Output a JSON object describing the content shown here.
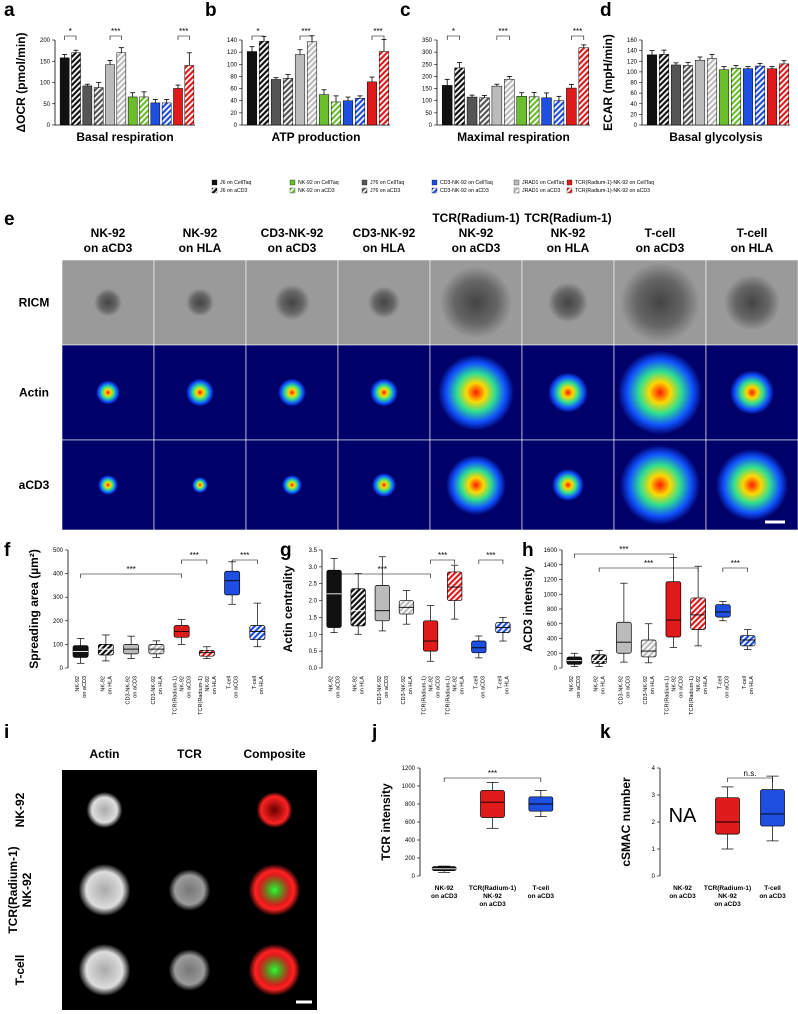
{
  "legend": [
    {
      "name": "J6 on CellTaq",
      "color": "#111111",
      "hatched": false
    },
    {
      "name": "J6 on aCD3",
      "color": "#111111",
      "hatched": true
    },
    {
      "name": "J76 on CellTaq",
      "color": "#555555",
      "hatched": false
    },
    {
      "name": "J76 on aCD3",
      "color": "#555555",
      "hatched": true
    },
    {
      "name": "JRAD1 on CellTaq",
      "color": "#bbbbbb",
      "hatched": false
    },
    {
      "name": "JRAD1 on aCD3",
      "color": "#bbbbbb",
      "hatched": true
    },
    {
      "name": "NK-92 on CellTaq",
      "color": "#6abf2a",
      "hatched": false
    },
    {
      "name": "NK-92 on aCD3",
      "color": "#6abf2a",
      "hatched": true
    },
    {
      "name": "CD3-NK-92 on CellTaq",
      "color": "#1f4fe0",
      "hatched": false
    },
    {
      "name": "CD3-NK-92 on aCD3",
      "color": "#1f4fe0",
      "hatched": true
    },
    {
      "name": "TCR(Radium-1)-NK-92 on CellTaq",
      "color": "#e01b1b",
      "hatched": false
    },
    {
      "name": "TCR(Radium-1)-NK-92 on aCD3",
      "color": "#e01b1b",
      "hatched": true
    }
  ],
  "chart_data": [
    {
      "type": "bar",
      "panel": "a",
      "ylabel": "ΔOCR (pmol/min)",
      "xlabel": "Basal respiration",
      "ylim": [
        0,
        200
      ],
      "yticks": [
        0,
        50,
        100,
        150,
        200
      ],
      "values": [
        158,
        170,
        92,
        88,
        142,
        170,
        66,
        66,
        52,
        52,
        86,
        140
      ],
      "errors": [
        8,
        6,
        4,
        12,
        10,
        12,
        10,
        12,
        8,
        8,
        8,
        30
      ],
      "annotations": [
        "*",
        "***",
        "***"
      ]
    },
    {
      "type": "bar",
      "panel": "b",
      "xlabel": "ATP production",
      "ylim": [
        0,
        140
      ],
      "yticks": [
        0,
        20,
        40,
        60,
        80,
        100,
        120,
        140
      ],
      "values": [
        121,
        138,
        75,
        77,
        116,
        137,
        50,
        38,
        40,
        44,
        71,
        121
      ],
      "errors": [
        8,
        8,
        3,
        6,
        8,
        10,
        8,
        10,
        6,
        4,
        8,
        20
      ],
      "annotations": [
        "*",
        "***",
        "***"
      ]
    },
    {
      "type": "bar",
      "panel": "c",
      "xlabel": "Maximal respiration",
      "ylim": [
        0,
        350
      ],
      "yticks": [
        0,
        50,
        100,
        150,
        200,
        250,
        300,
        350
      ],
      "values": [
        163,
        235,
        115,
        112,
        160,
        188,
        118,
        116,
        112,
        100,
        152,
        318
      ],
      "errors": [
        25,
        22,
        8,
        10,
        8,
        12,
        15,
        18,
        20,
        18,
        15,
        12
      ],
      "annotations": [
        "*",
        "***",
        "***"
      ]
    },
    {
      "type": "bar",
      "panel": "d",
      "ylabel": "ECAR (mpH/min)",
      "xlabel": "Basal glycolysis",
      "ylim": [
        0,
        160
      ],
      "yticks": [
        0,
        20,
        40,
        60,
        80,
        100,
        120,
        140,
        160
      ],
      "values": [
        132,
        133,
        113,
        112,
        122,
        125,
        104,
        107,
        106,
        111,
        106,
        115
      ],
      "errors": [
        8,
        8,
        4,
        6,
        6,
        8,
        6,
        5,
        4,
        5,
        4,
        6
      ],
      "annotations": []
    },
    {
      "type": "box",
      "panel": "f",
      "ylabel": "Spreading area (µm²)",
      "ylim": [
        0,
        500
      ],
      "yticks": [
        0,
        100,
        200,
        300,
        400,
        500
      ],
      "categories": [
        [
          "NK-92",
          "on aCD3"
        ],
        [
          "NK-92",
          "on HLA"
        ],
        [
          "CD3-NK-92",
          "on aCD3"
        ],
        [
          "CD3-NK-92",
          "on HLA"
        ],
        [
          "TCR(Radium-1)",
          "NK-92",
          "on aCD3"
        ],
        [
          "TCR(Radium-1)",
          "NK-92",
          "on HLA"
        ],
        [
          "T-cell",
          "on aCD3"
        ],
        [
          "T-cell",
          "on HLA"
        ]
      ],
      "colors": [
        "#111111",
        "#111111",
        "#bbbbbb",
        "#bbbbbb",
        "#e01b1b",
        "#e01b1b",
        "#1f4fe0",
        "#1f4fe0"
      ],
      "hatched": [
        false,
        true,
        false,
        true,
        false,
        true,
        false,
        true
      ],
      "boxes": [
        {
          "min": 20,
          "q1": 45,
          "median": 70,
          "q3": 95,
          "max": 125
        },
        {
          "min": 30,
          "q1": 55,
          "median": 80,
          "q3": 100,
          "max": 140
        },
        {
          "min": 40,
          "q1": 60,
          "median": 80,
          "q3": 100,
          "max": 135
        },
        {
          "min": 45,
          "q1": 60,
          "median": 80,
          "q3": 100,
          "max": 115
        },
        {
          "min": 100,
          "q1": 130,
          "median": 155,
          "q3": 180,
          "max": 205
        },
        {
          "min": 40,
          "q1": 50,
          "median": 65,
          "q3": 75,
          "max": 90
        },
        {
          "min": 270,
          "q1": 310,
          "median": 370,
          "q3": 410,
          "max": 450
        },
        {
          "min": 90,
          "q1": 120,
          "median": 155,
          "q3": 180,
          "max": 275
        }
      ],
      "annotations": [
        "***",
        "***",
        "***"
      ]
    },
    {
      "type": "box",
      "panel": "g",
      "ylabel": "Actin centrality",
      "ylim": [
        0,
        3.5
      ],
      "yticks": [
        {
          "value": 0,
          "label": "0.0"
        },
        {
          "value": 0.5,
          "label": "0.5"
        },
        {
          "value": 1,
          "label": "1.0"
        },
        {
          "value": 1.5,
          "label": "1.5"
        },
        {
          "value": 2,
          "label": "2.0"
        },
        {
          "value": 2.5,
          "label": "2.5"
        },
        {
          "value": 3,
          "label": "3.0"
        },
        {
          "value": 3.5,
          "label": "3.5"
        }
      ],
      "categories": [
        [
          "NK-92",
          "on aCD3"
        ],
        [
          "NK-92",
          "on HLA"
        ],
        [
          "CD3-NK-92",
          "on aCD3"
        ],
        [
          "CD3-NK-92",
          "on HLA"
        ],
        [
          "TCR(Radium-1)",
          "NK-92",
          "on aCD3"
        ],
        [
          "TCR(Radium-1)",
          "NK-92",
          "on HLA"
        ],
        [
          "T-cell",
          "on aCD3"
        ],
        [
          "T-cell",
          "on HLA"
        ]
      ],
      "colors": [
        "#111111",
        "#111111",
        "#bbbbbb",
        "#bbbbbb",
        "#e01b1b",
        "#e01b1b",
        "#1f4fe0",
        "#1f4fe0"
      ],
      "hatched": [
        false,
        true,
        false,
        true,
        false,
        true,
        false,
        true
      ],
      "boxes": [
        {
          "min": 1.05,
          "q1": 1.2,
          "median": 2.2,
          "q3": 2.9,
          "max": 3.25
        },
        {
          "min": 1.0,
          "q1": 1.25,
          "median": 1.7,
          "q3": 2.35,
          "max": 2.8
        },
        {
          "min": 1.1,
          "q1": 1.4,
          "median": 1.7,
          "q3": 2.45,
          "max": 3.3
        },
        {
          "min": 1.3,
          "q1": 1.6,
          "median": 1.8,
          "q3": 2.0,
          "max": 2.3
        },
        {
          "min": 0.2,
          "q1": 0.5,
          "median": 0.8,
          "q3": 1.4,
          "max": 1.85
        },
        {
          "min": 1.45,
          "q1": 2.0,
          "median": 2.4,
          "q3": 2.85,
          "max": 3.05
        },
        {
          "min": 0.3,
          "q1": 0.45,
          "median": 0.6,
          "q3": 0.8,
          "max": 0.95
        },
        {
          "min": 0.8,
          "q1": 1.05,
          "median": 1.2,
          "q3": 1.35,
          "max": 1.5
        }
      ],
      "annotations": [
        "***",
        "***",
        "***"
      ]
    },
    {
      "type": "box",
      "panel": "h",
      "ylabel": "ACD3 intensity",
      "ylim": [
        0,
        1600
      ],
      "yticks": [
        0,
        200,
        400,
        600,
        800,
        1000,
        1200,
        1400,
        1600
      ],
      "categories": [
        [
          "NK-92",
          "on aCD3"
        ],
        [
          "NK-92",
          "on HLA"
        ],
        [
          "CD3-NK-92",
          "on aCD3"
        ],
        [
          "CD3-NK-92",
          "on HLA"
        ],
        [
          "TCR(Radium-1)",
          "NK-92",
          "on aCD3"
        ],
        [
          "TCR(Radium-1)",
          "NK-92",
          "on HLA"
        ],
        [
          "T-cell",
          "on aCD3"
        ],
        [
          "T-cell",
          "on HLA"
        ]
      ],
      "colors": [
        "#111111",
        "#111111",
        "#bbbbbb",
        "#bbbbbb",
        "#e01b1b",
        "#e01b1b",
        "#1f4fe0",
        "#1f4fe0"
      ],
      "hatched": [
        false,
        true,
        false,
        true,
        false,
        true,
        false,
        true
      ],
      "boxes": [
        {
          "min": 20,
          "q1": 50,
          "median": 100,
          "q3": 150,
          "max": 200
        },
        {
          "min": 20,
          "q1": 60,
          "median": 100,
          "q3": 180,
          "max": 240
        },
        {
          "min": 80,
          "q1": 200,
          "median": 350,
          "q3": 620,
          "max": 1150
        },
        {
          "min": 70,
          "q1": 150,
          "median": 230,
          "q3": 380,
          "max": 600
        },
        {
          "min": 280,
          "q1": 420,
          "median": 650,
          "q3": 1170,
          "max": 1500
        },
        {
          "min": 300,
          "q1": 520,
          "median": 720,
          "q3": 950,
          "max": 1380
        },
        {
          "min": 640,
          "q1": 690,
          "median": 760,
          "q3": 860,
          "max": 900
        },
        {
          "min": 250,
          "q1": 300,
          "median": 380,
          "q3": 440,
          "max": 520
        }
      ],
      "annotations": [
        "***",
        "***",
        "***"
      ]
    },
    {
      "type": "box",
      "panel": "j",
      "ylabel": "TCR intensity",
      "ylim": [
        0,
        1200
      ],
      "yticks": [
        0,
        200,
        400,
        600,
        800,
        1000,
        1200
      ],
      "categories": [
        [
          "NK-92",
          "on aCD3"
        ],
        [
          "TCR(Radium-1)",
          "NK-92",
          "on aCD3"
        ],
        [
          "T-cell",
          "on aCD3"
        ]
      ],
      "colors": [
        "#111111",
        "#e01b1b",
        "#1f4fe0"
      ],
      "hatched": [
        false,
        false,
        false
      ],
      "boxes": [
        {
          "min": 40,
          "q1": 60,
          "median": 80,
          "q3": 105,
          "max": 110
        },
        {
          "min": 530,
          "q1": 650,
          "median": 820,
          "q3": 950,
          "max": 1040
        },
        {
          "min": 660,
          "q1": 720,
          "median": 800,
          "q3": 880,
          "max": 950
        }
      ],
      "annotations": [
        "***"
      ]
    },
    {
      "type": "box",
      "panel": "k",
      "ylabel": "cSMAC number",
      "ylim": [
        0,
        4
      ],
      "yticks": [
        0,
        1,
        2,
        3,
        4
      ],
      "categories": [
        [
          "NK-92",
          "on aCD3"
        ],
        [
          "TCR(Radium-1)",
          "NK-92",
          "on aCD3"
        ],
        [
          "T-cell",
          "on aCD3"
        ]
      ],
      "colors": [
        "#111111",
        "#e01b1b",
        "#1f4fe0"
      ],
      "hatched": [
        false,
        false,
        false
      ],
      "boxes": [
        null,
        {
          "min": 1,
          "q1": 1.55,
          "median": 2,
          "q3": 2.9,
          "max": 3.3
        },
        {
          "min": 1.3,
          "q1": 1.85,
          "median": 2.3,
          "q3": 3.2,
          "max": 3.7
        }
      ],
      "missing_label": "NA",
      "annotations": [
        "n.s."
      ]
    }
  ],
  "image_panels": [
    {
      "panel": "e",
      "columns": [
        [
          "NK-92",
          "on aCD3"
        ],
        [
          "NK-92",
          "on HLA"
        ],
        [
          "CD3-NK-92",
          "on aCD3"
        ],
        [
          "CD3-NK-92",
          "on HLA"
        ],
        [
          "TCR(Radium-1)",
          "NK-92",
          "on aCD3"
        ],
        [
          "TCR(Radium-1)",
          "NK-92",
          "on HLA"
        ],
        [
          "T-cell",
          "on aCD3"
        ],
        [
          "T-cell",
          "on HLA"
        ]
      ],
      "rows": [
        [
          "RICM"
        ],
        [
          "Actin"
        ],
        [
          "aCD3"
        ]
      ]
    },
    {
      "panel": "i",
      "columns": [
        [
          "Actin"
        ],
        [
          "TCR"
        ],
        [
          "Composite"
        ]
      ],
      "rows": [
        [
          "NK-92"
        ],
        [
          "TCR(Radium-1)",
          "NK-92"
        ],
        [
          "T-cell"
        ]
      ]
    }
  ]
}
